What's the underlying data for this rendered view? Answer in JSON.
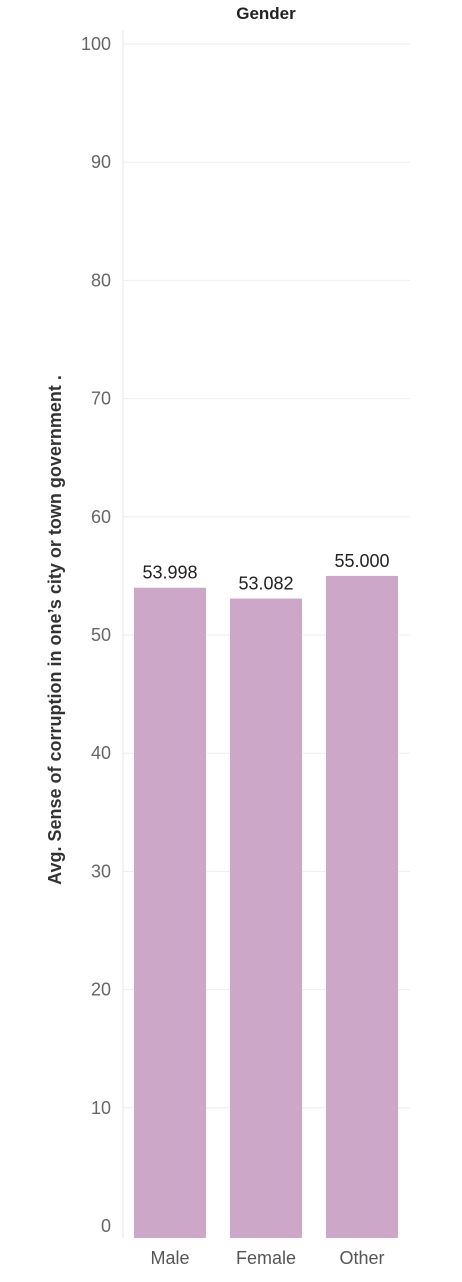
{
  "chart_data": {
    "type": "bar",
    "title": "Gender",
    "xlabel": "",
    "ylabel": "Avg. Sense of corruption in one’s city or town government .",
    "categories": [
      "Male",
      "Female",
      "Other"
    ],
    "values": [
      53.998,
      53.082,
      55.0
    ],
    "value_labels": [
      "53.998",
      "53.082",
      "55.000"
    ],
    "ylim": [
      0,
      100
    ],
    "yticks": [
      0,
      10,
      20,
      30,
      40,
      50,
      60,
      70,
      80,
      90,
      100
    ],
    "grid": true,
    "legend": "none",
    "colors": {
      "bar": "#cca7c7",
      "grid": "#eeeeee",
      "axis": "#cccccc"
    }
  }
}
